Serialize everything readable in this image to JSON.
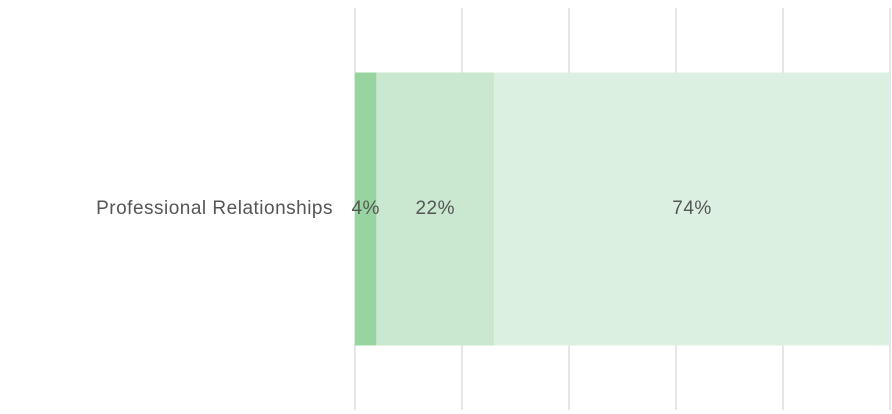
{
  "chart_data": {
    "type": "stacked-barh",
    "categories": [
      "Professional Relationships"
    ],
    "series": [
      {
        "color": "#98d4a0",
        "values": [
          4
        ],
        "value_labels": [
          "4%"
        ]
      },
      {
        "color": "#c9e8cf",
        "values": [
          22
        ],
        "value_labels": [
          "22%"
        ]
      },
      {
        "color": "#dcf0e1",
        "values": [
          74
        ],
        "value_labels": [
          "74%"
        ]
      }
    ],
    "xlim": [
      0,
      100
    ],
    "xticks": [
      0,
      20,
      40,
      60,
      80,
      100
    ],
    "grid": true
  }
}
